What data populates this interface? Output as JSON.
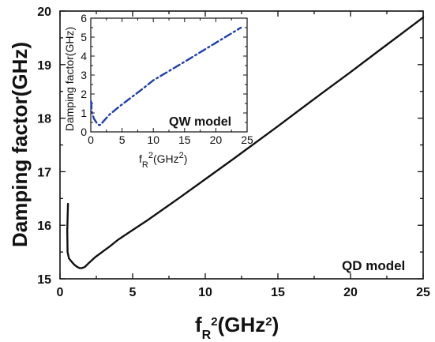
{
  "chart_data": [
    {
      "type": "line",
      "xlim": [
        0,
        25
      ],
      "ylim": [
        15,
        20
      ],
      "x_ticks": [
        "0",
        "5",
        "10",
        "15",
        "20",
        "25"
      ],
      "y_ticks": [
        "15",
        "16",
        "17",
        "18",
        "19",
        "20"
      ],
      "xlabel": {
        "prefix": "f",
        "sub": "R",
        "sup1": "2",
        "mid": "(GHz",
        "sup2": "2",
        "suffix": ")"
      },
      "ylabel": "Damping factor(GHz)",
      "annotation": "QD model",
      "grid": false,
      "line_color": "#111111",
      "series": [
        {
          "x": [
            0.55,
            0.5,
            0.52,
            0.62,
            0.8,
            1.0,
            1.2,
            1.35,
            1.5,
            1.7,
            2.0,
            2.4,
            2.8,
            3.0,
            3.4,
            4.0,
            5.0,
            6.0,
            8.0,
            10.0,
            12.0,
            15.0,
            18.0,
            20.0,
            22.0,
            25.0
          ],
          "y": [
            16.4,
            15.9,
            15.5,
            15.38,
            15.32,
            15.26,
            15.22,
            15.2,
            15.2,
            15.22,
            15.3,
            15.4,
            15.48,
            15.52,
            15.6,
            15.73,
            15.91,
            16.09,
            16.47,
            16.86,
            17.25,
            17.85,
            18.46,
            18.86,
            19.27,
            19.88
          ]
        }
      ]
    },
    {
      "type": "line",
      "xlim": [
        0,
        25
      ],
      "ylim": [
        0,
        6
      ],
      "x_ticks": [
        "0",
        "5",
        "10",
        "15",
        "20",
        "25"
      ],
      "y_ticks": [
        "0",
        "1",
        "2",
        "3",
        "4",
        "5",
        "6"
      ],
      "xlabel": {
        "prefix": "f",
        "sub": "R",
        "sup1": "2",
        "mid": "(GHz",
        "sup2": "2",
        "suffix": ")"
      },
      "ylabel": "Damping factor(GHz)",
      "annotation": "QW model",
      "grid": false,
      "line_color": "#1f3fa8",
      "series": [
        {
          "x": [
            0.05,
            0.15,
            0.3,
            0.5,
            0.8,
            1.0,
            1.2,
            1.4,
            1.6,
            2.0,
            3.0,
            5.0,
            8.0,
            10.0,
            15.0,
            20.0,
            24.0
          ],
          "y": [
            1.6,
            1.1,
            0.9,
            0.7,
            0.55,
            0.45,
            0.38,
            0.36,
            0.38,
            0.55,
            0.92,
            1.45,
            2.2,
            2.72,
            3.7,
            4.7,
            5.5
          ]
        }
      ]
    }
  ]
}
